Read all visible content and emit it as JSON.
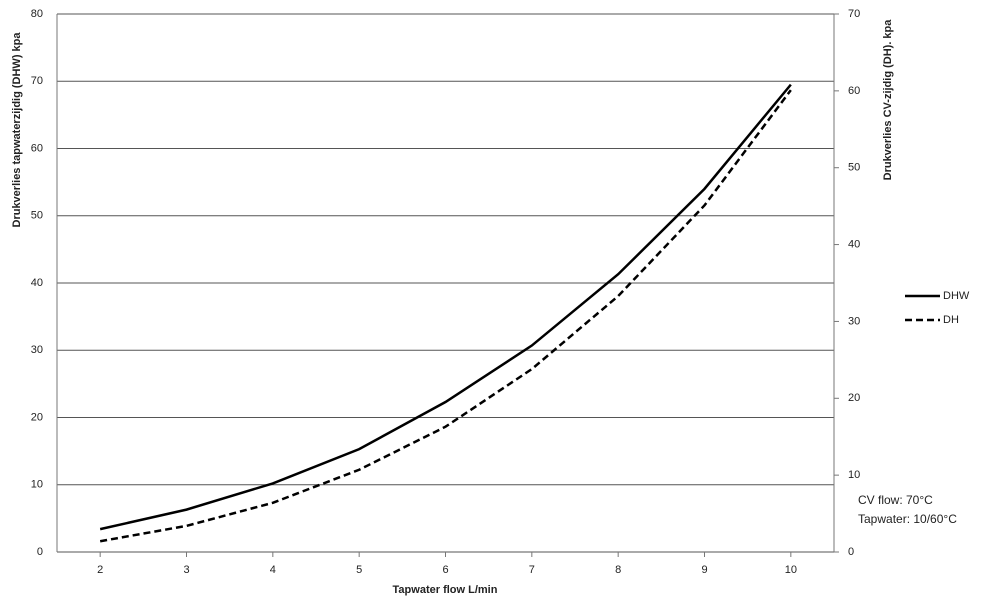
{
  "chart_data": {
    "type": "line",
    "x_label": "Tapwater flow  L/min",
    "y_label": "Drukverlies tapwaterzijdig (DHW)  kpa",
    "y2_label": "Drukverlies CV-zijdig (DH).  kpa",
    "annotations": [
      "CV flow: 70°C",
      "Tapwater: 10/60°C"
    ],
    "x": [
      2,
      3,
      4,
      5,
      6,
      7,
      8,
      9,
      10
    ],
    "xlim": [
      1.5,
      10.5
    ],
    "xticks": [
      2,
      3,
      4,
      5,
      6,
      7,
      8,
      9,
      10
    ],
    "ylim": [
      0,
      80
    ],
    "yticks": [
      0,
      10,
      20,
      30,
      40,
      50,
      60,
      70,
      80
    ],
    "y2lim": [
      0,
      70
    ],
    "y2ticks": [
      0,
      10,
      20,
      30,
      40,
      50,
      60,
      70
    ],
    "grid": true,
    "legend": "right",
    "series": [
      {
        "name": "DHW",
        "color": "#000000",
        "dash": false,
        "values": [
          3.4,
          6.3,
          10.2,
          15.3,
          22.3,
          30.7,
          41.3,
          54,
          69.5
        ]
      },
      {
        "name": "DH",
        "color": "#000000",
        "dash": true,
        "axis": "y2",
        "values": [
          1.4,
          3.4,
          6.4,
          10.7,
          16.3,
          23.8,
          33.3,
          45.1,
          60.1
        ]
      }
    ]
  }
}
